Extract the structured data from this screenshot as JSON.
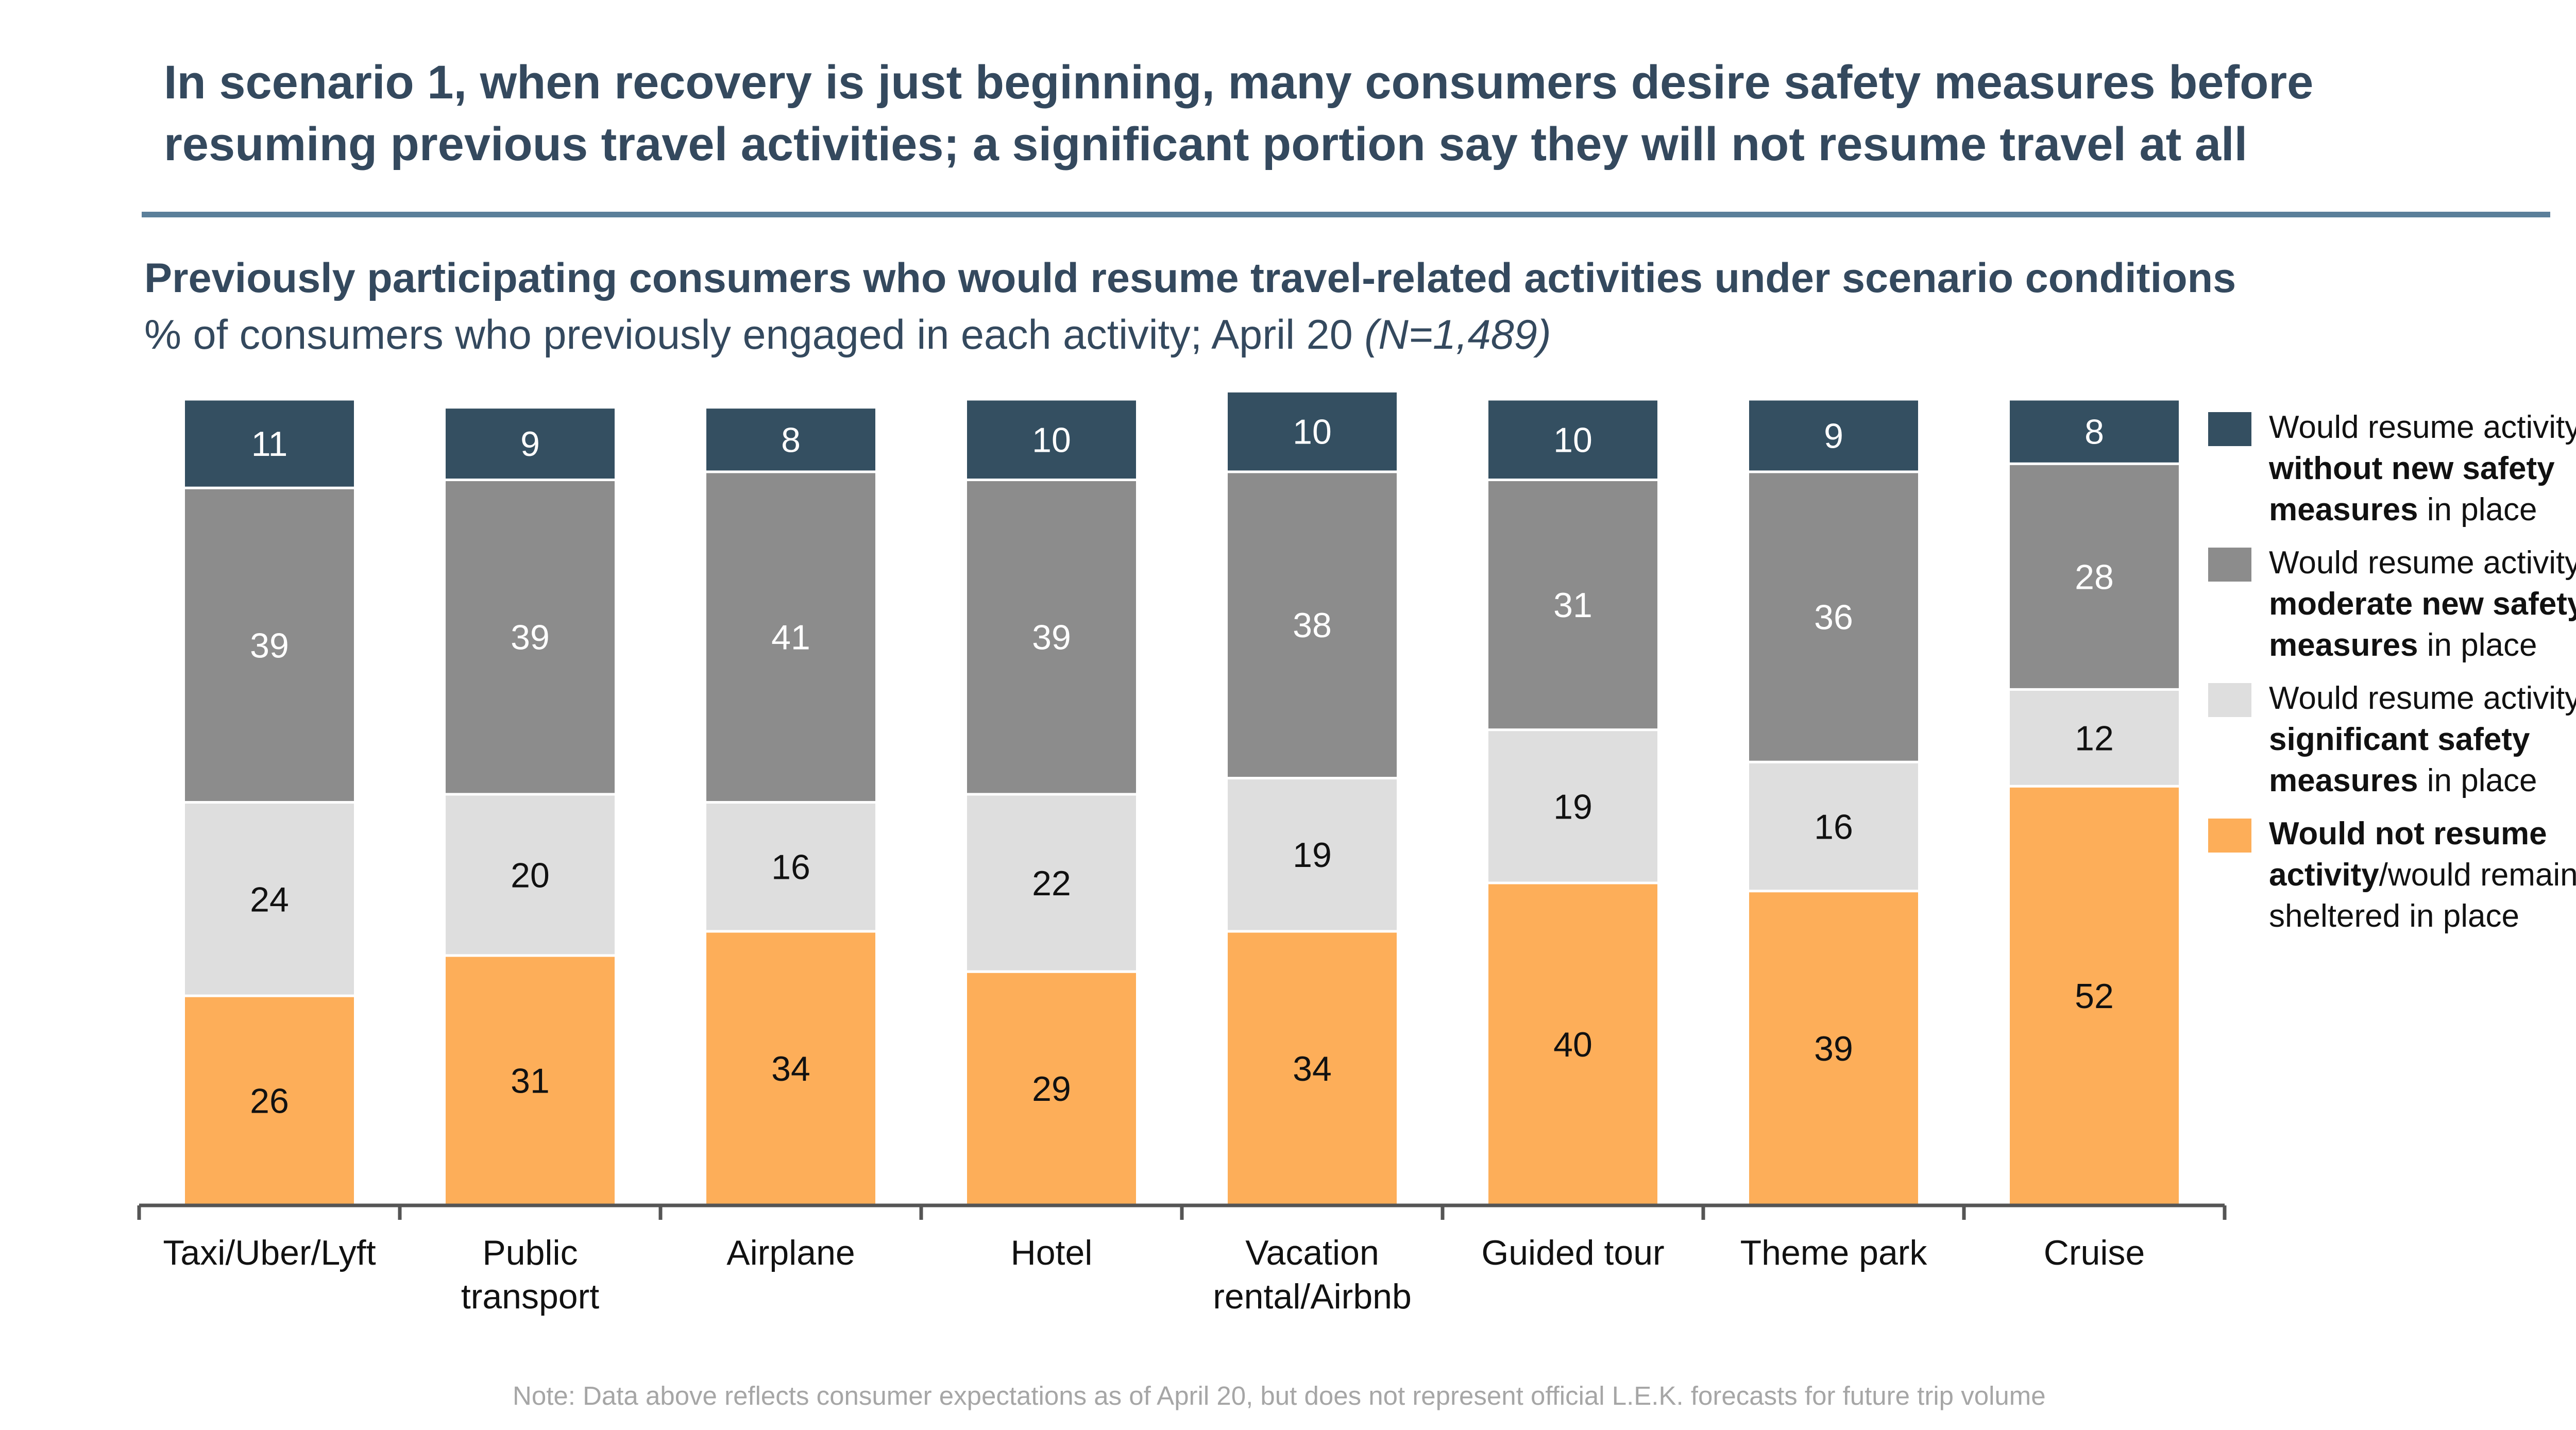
{
  "headline": {
    "line1": "In scenario 1, when recovery is just beginning, many consumers desire safety measures before",
    "line2": "resuming previous travel activities; a significant portion say they will not resume travel at all"
  },
  "chart_header": {
    "title": "Previously participating consumers who would resume travel-related activities under scenario conditions",
    "subtitle": "% of consumers who previously engaged in each activity; April 20",
    "sample": "(N=1,489)"
  },
  "legend": [
    {
      "prefix": "Would resume activity ",
      "bold": "without new safety measures",
      "suffix": " in place",
      "color": "#344f61"
    },
    {
      "prefix": "Would resume activity ",
      "bold": "with moderate new safety measures",
      "suffix": " in place",
      "color": "#8c8c8c"
    },
    {
      "prefix": "Would resume activity ",
      "bold": "with significant safety measures",
      "suffix": " in place",
      "color": "#dedede"
    },
    {
      "prefix": "",
      "bold": "Would not resume activity",
      "suffix": "/would remain sheltered in place",
      "color": "#fdae59"
    }
  ],
  "chart_data": {
    "type": "bar",
    "stacked": true,
    "unit": "%",
    "categories": [
      [
        "Taxi/Uber/Lyft"
      ],
      [
        "Public",
        "transport"
      ],
      [
        "Airplane"
      ],
      [
        "Hotel"
      ],
      [
        "Vacation",
        "rental/Airbnb"
      ],
      [
        "Guided tour"
      ],
      [
        "Theme park"
      ],
      [
        "Cruise"
      ]
    ],
    "series": [
      {
        "name": "Would not resume activity/would remain sheltered in place",
        "color": "#fdae59",
        "label_color": "#111111",
        "values": [
          26,
          31,
          34,
          29,
          34,
          40,
          39,
          52
        ]
      },
      {
        "name": "Would resume activity with significant safety measures in place",
        "color": "#dedede",
        "label_color": "#111111",
        "values": [
          24,
          20,
          16,
          22,
          19,
          19,
          16,
          12
        ]
      },
      {
        "name": "Would resume activity with moderate new safety measures in place",
        "color": "#8c8c8c",
        "label_color": "#ffffff",
        "values": [
          39,
          39,
          41,
          39,
          38,
          31,
          36,
          28
        ]
      },
      {
        "name": "Would resume activity without new safety measures in place",
        "color": "#344f61",
        "label_color": "#ffffff",
        "values": [
          11,
          9,
          8,
          10,
          10,
          10,
          9,
          8
        ]
      }
    ]
  },
  "note": "Note: Data above reflects consumer expectations as of April 20, but does not represent official L.E.K. forecasts for future trip volume"
}
